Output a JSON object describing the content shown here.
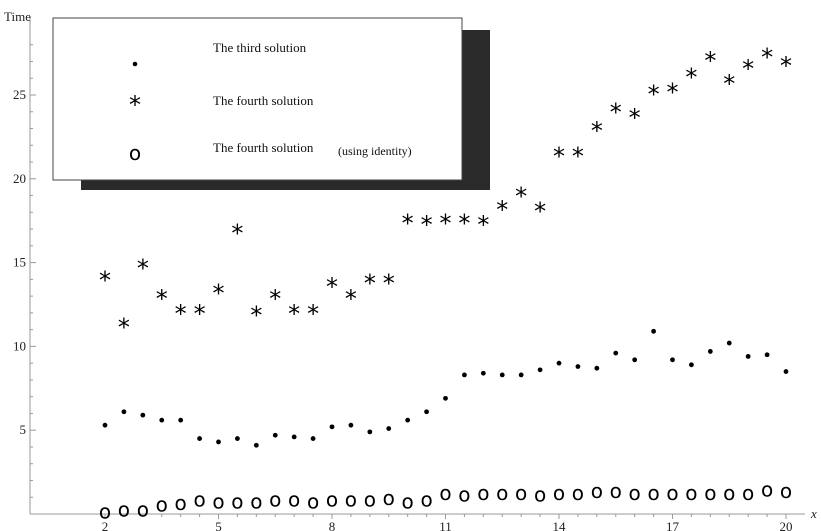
{
  "chart_data": {
    "type": "scatter",
    "ylabel": "Time",
    "xlabel": "x",
    "xlim": [
      1.5,
      20.4
    ],
    "ylim": [
      0,
      28.5
    ],
    "x_ticks": [
      2,
      5,
      8,
      11,
      14,
      17,
      20
    ],
    "y_ticks": [
      5,
      10,
      15,
      20,
      25
    ],
    "legend_placement": "top-left",
    "series": [
      {
        "name": "The third solution",
        "marker": "dot",
        "x": [
          2,
          2.5,
          3,
          3.5,
          4,
          4.5,
          5,
          5.5,
          6,
          6.5,
          7,
          7.5,
          8,
          8.5,
          9,
          9.5,
          10,
          10.5,
          11,
          11.5,
          12,
          12.5,
          13,
          13.5,
          14,
          14.5,
          15,
          15.5,
          16,
          16.5,
          17,
          17.5,
          18,
          18.5,
          19,
          19.5,
          20
        ],
        "values": [
          5.3,
          6.1,
          5.9,
          5.6,
          5.6,
          4.5,
          4.3,
          4.5,
          4.1,
          4.7,
          4.6,
          4.5,
          5.2,
          5.3,
          4.9,
          5.1,
          5.6,
          6.1,
          6.9,
          8.3,
          8.4,
          8.3,
          8.3,
          8.6,
          9.0,
          8.8,
          8.7,
          9.6,
          9.2,
          10.9,
          9.2,
          8.9,
          9.7,
          10.2,
          9.4,
          9.5,
          8.5
        ]
      },
      {
        "name": "The fourth solution",
        "marker": "star",
        "x": [
          2,
          2.5,
          3,
          3.5,
          4,
          4.5,
          5,
          5.5,
          6,
          6.5,
          7,
          7.5,
          8,
          8.5,
          9,
          9.5,
          10,
          10.5,
          11,
          11.5,
          12,
          12.5,
          13,
          13.5,
          14,
          14.5,
          15,
          15.5,
          16,
          16.5,
          17,
          17.5,
          18,
          18.5,
          19,
          19.5,
          20
        ],
        "values": [
          14.3,
          11.5,
          15.0,
          13.2,
          12.3,
          12.3,
          13.5,
          17.1,
          12.2,
          13.2,
          12.3,
          12.3,
          13.9,
          13.2,
          14.1,
          14.1,
          17.7,
          17.6,
          17.7,
          17.7,
          17.6,
          18.5,
          19.3,
          18.4,
          21.7,
          21.7,
          23.2,
          24.3,
          24.0,
          25.4,
          25.5,
          26.4,
          27.4,
          26.0,
          26.9,
          27.6,
          27.1
        ]
      },
      {
        "name": "The fourth solution",
        "name_note": "(using identity)",
        "marker": "o",
        "x": [
          2,
          2.5,
          3,
          3.5,
          4,
          4.5,
          5,
          5.5,
          6,
          6.5,
          7,
          7.5,
          8,
          8.5,
          9,
          9.5,
          10,
          10.5,
          11,
          11.5,
          12,
          12.5,
          13,
          13.5,
          14,
          14.5,
          15,
          15.5,
          16,
          16.5,
          17,
          17.5,
          18,
          18.5,
          19,
          19.5,
          20
        ],
        "values": [
          0.1,
          0.2,
          0.2,
          0.5,
          0.6,
          0.8,
          0.7,
          0.7,
          0.7,
          0.8,
          0.8,
          0.7,
          0.8,
          0.8,
          0.8,
          0.9,
          0.7,
          0.8,
          1.2,
          1.1,
          1.2,
          1.2,
          1.2,
          1.1,
          1.2,
          1.2,
          1.3,
          1.3,
          1.2,
          1.2,
          1.2,
          1.2,
          1.2,
          1.2,
          1.2,
          1.4,
          1.3
        ]
      }
    ]
  }
}
